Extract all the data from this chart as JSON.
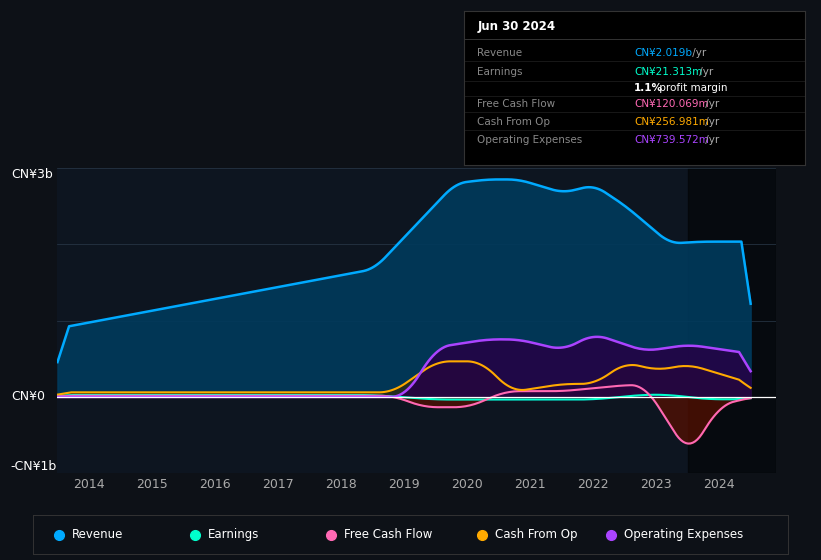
{
  "bg_color": "#0d1117",
  "plot_bg_color": "#0d1520",
  "title_date": "Jun 30 2024",
  "revenue_color": "#00aaff",
  "earnings_color": "#00ffcc",
  "fcf_color": "#ff69b4",
  "cashop_color": "#ffaa00",
  "opex_color": "#aa44ff",
  "ylim": [
    -1000000000,
    3000000000
  ],
  "xlim": [
    2013.5,
    2024.9
  ],
  "xticks": [
    2014,
    2015,
    2016,
    2017,
    2018,
    2019,
    2020,
    2021,
    2022,
    2023,
    2024
  ],
  "highlight_x_start": 2023.5,
  "highlight_x_end": 2024.9,
  "legend_items": [
    {
      "label": "Revenue",
      "color": "#00aaff"
    },
    {
      "label": "Earnings",
      "color": "#00ffcc"
    },
    {
      "label": "Free Cash Flow",
      "color": "#ff69b4"
    },
    {
      "label": "Cash From Op",
      "color": "#ffaa00"
    },
    {
      "label": "Operating Expenses",
      "color": "#aa44ff"
    }
  ],
  "info_rows": [
    {
      "label": "Revenue",
      "value": "CN¥2.019b /yr",
      "color": "#00aaff"
    },
    {
      "label": "Earnings",
      "value": "CN¥21.313m /yr",
      "color": "#00ffcc"
    },
    {
      "label": "",
      "value": "1.1% profit margin",
      "color": "#ffffff"
    },
    {
      "label": "Free Cash Flow",
      "value": "CN¥120.069m /yr",
      "color": "#ff69b4"
    },
    {
      "label": "Cash From Op",
      "value": "CN¥256.981m /yr",
      "color": "#ffaa00"
    },
    {
      "label": "Operating Expenses",
      "value": "CN¥739.572m /yr",
      "color": "#aa44ff"
    }
  ]
}
